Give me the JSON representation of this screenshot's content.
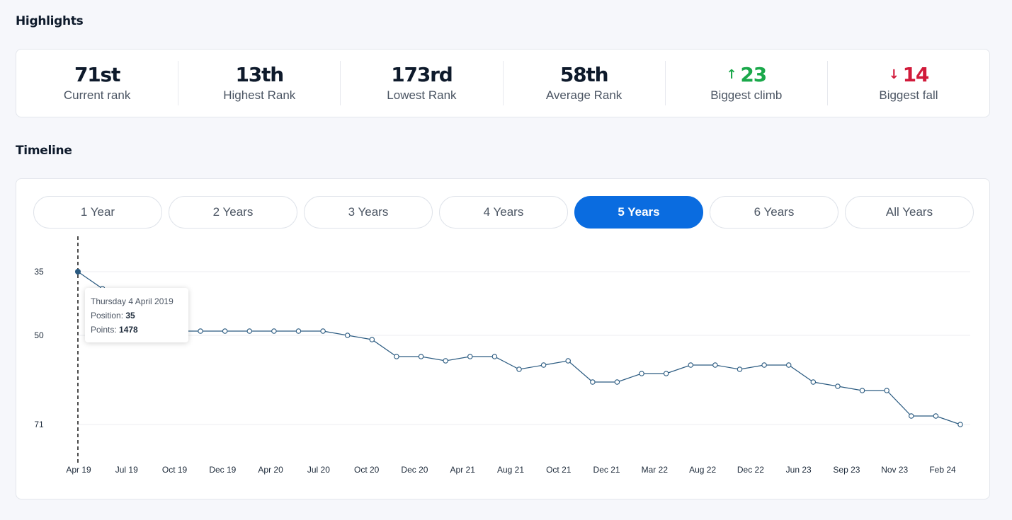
{
  "highlights": {
    "title": "Highlights",
    "stats": [
      {
        "value": "71st",
        "label": "Current rank"
      },
      {
        "value": "13th",
        "label": "Highest Rank"
      },
      {
        "value": "173rd",
        "label": "Lowest Rank"
      },
      {
        "value": "58th",
        "label": "Average Rank"
      },
      {
        "value": "23",
        "label": "Biggest climb",
        "arrow": "↑"
      },
      {
        "value": "14",
        "label": "Biggest fall",
        "arrow": "↓"
      }
    ]
  },
  "timeline": {
    "title": "Timeline",
    "ranges": [
      "1 Year",
      "2 Years",
      "3 Years",
      "4 Years",
      "5 Years",
      "6 Years",
      "All Years"
    ],
    "active_range": "5 Years"
  },
  "tooltip": {
    "date": "Thursday 4 April 2019",
    "position_label": "Position:",
    "position_value": "35",
    "points_label": "Points:",
    "points_value": "1478"
  },
  "colors": {
    "accent": "#0a6ce0",
    "up": "#1aa84a",
    "down": "#d11a3a",
    "line": "#2a5a80"
  },
  "chart_data": {
    "type": "line",
    "y_ticks": [
      35,
      50,
      71
    ],
    "ylim": [
      35,
      71
    ],
    "y_inverted": true,
    "x_tick_labels": [
      "Apr 19",
      "Jul 19",
      "Oct 19",
      "Dec 19",
      "Apr 20",
      "Jul 20",
      "Oct 20",
      "Dec 20",
      "Apr 21",
      "Aug 21",
      "Oct 21",
      "Dec 21",
      "Mar 22",
      "Aug 22",
      "Dec 22",
      "Jun 23",
      "Sep 23",
      "Nov 23",
      "Feb 24"
    ],
    "series": [
      {
        "values": [
          35,
          39,
          45,
          48,
          49,
          49,
          49,
          49,
          49,
          49,
          49,
          50,
          51,
          55,
          55,
          56,
          55,
          55,
          58,
          57,
          56,
          61,
          61,
          59,
          59,
          57,
          57,
          58,
          57,
          57,
          61,
          62,
          63,
          63,
          69,
          69,
          71
        ]
      }
    ],
    "highlighted_index": 0
  }
}
